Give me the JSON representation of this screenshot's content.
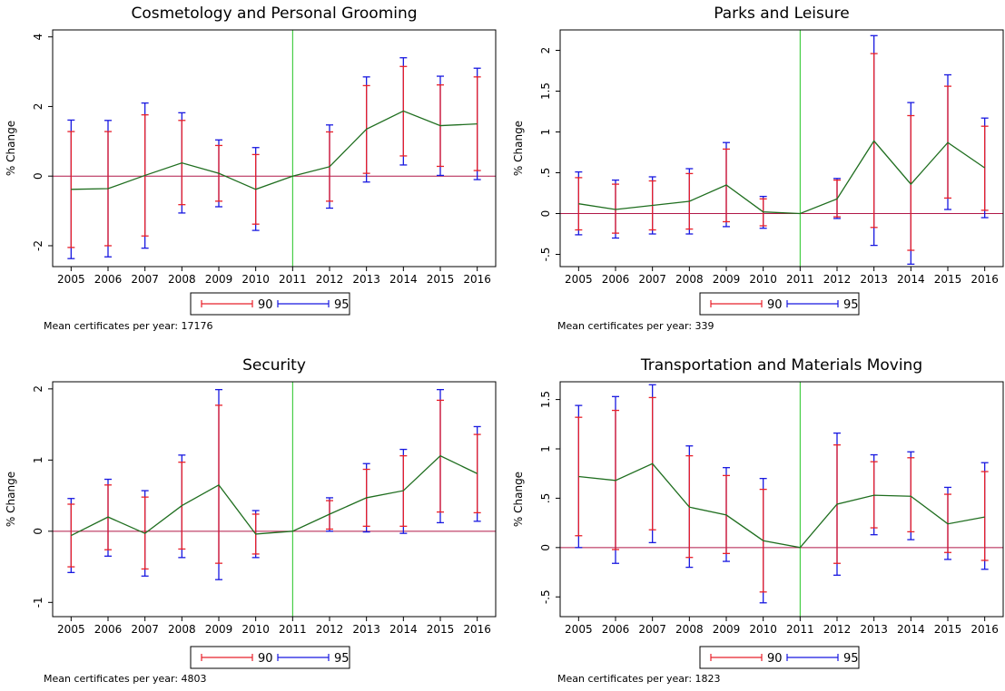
{
  "chart_data": [
    {
      "type": "line",
      "title": "Cosmetology and Personal Grooming",
      "ylabel": "% Change",
      "xlabel": "",
      "x": [
        "2005",
        "2006",
        "2007",
        "2008",
        "2009",
        "2010",
        "2011",
        "2012",
        "2013",
        "2014",
        "2015",
        "2016"
      ],
      "ylim": [
        -2.6,
        4.2
      ],
      "yticks": [
        -2,
        0,
        2,
        4
      ],
      "ytick_labels": [
        "-2",
        "0",
        "2",
        "4"
      ],
      "reference_x": "2011",
      "reference_y": 0,
      "series": [
        {
          "role": "point_estimate",
          "values": [
            -0.38,
            -0.36,
            0.02,
            0.38,
            0.08,
            -0.38,
            0.0,
            0.27,
            1.35,
            1.87,
            1.45,
            1.5
          ]
        },
        {
          "name": "90",
          "role": "ci",
          "low": [
            -2.05,
            -2.0,
            -1.72,
            -0.82,
            -0.72,
            -1.38,
            0.0,
            -0.72,
            0.08,
            0.58,
            0.28,
            0.16
          ],
          "high": [
            1.28,
            1.28,
            1.76,
            1.6,
            0.88,
            0.62,
            0.0,
            1.27,
            2.6,
            3.15,
            2.62,
            2.85
          ]
        },
        {
          "name": "95",
          "role": "ci",
          "low": [
            -2.37,
            -2.32,
            -2.07,
            -1.06,
            -0.88,
            -1.56,
            0.0,
            -0.92,
            -0.17,
            0.32,
            0.02,
            -0.1
          ],
          "high": [
            1.61,
            1.6,
            2.1,
            1.82,
            1.04,
            0.82,
            0.0,
            1.47,
            2.85,
            3.4,
            2.87,
            3.1
          ]
        }
      ],
      "legend_position": "bottom",
      "note": "Mean certificates per year: 17176"
    },
    {
      "type": "line",
      "title": "Parks and Leisure",
      "ylabel": "% Change",
      "xlabel": "",
      "x": [
        "2005",
        "2006",
        "2007",
        "2008",
        "2009",
        "2010",
        "2011",
        "2012",
        "2013",
        "2014",
        "2015",
        "2016"
      ],
      "ylim": [
        -0.65,
        2.25
      ],
      "yticks": [
        -0.5,
        0,
        0.5,
        1,
        1.5,
        2
      ],
      "ytick_labels": [
        "-.5",
        "0",
        ".5",
        "1",
        "1.5",
        "2"
      ],
      "reference_x": "2011",
      "reference_y": 0,
      "series": [
        {
          "role": "point_estimate",
          "values": [
            0.12,
            0.05,
            0.1,
            0.15,
            0.35,
            0.02,
            0.0,
            0.18,
            0.89,
            0.36,
            0.87,
            0.56
          ]
        },
        {
          "name": "90",
          "role": "ci",
          "low": [
            -0.2,
            -0.24,
            -0.2,
            -0.19,
            -0.1,
            -0.15,
            0.0,
            -0.04,
            -0.17,
            -0.45,
            0.19,
            0.04
          ],
          "high": [
            0.44,
            0.36,
            0.4,
            0.49,
            0.79,
            0.18,
            0.0,
            0.41,
            1.96,
            1.2,
            1.56,
            1.07
          ]
        },
        {
          "name": "95",
          "role": "ci",
          "low": [
            -0.26,
            -0.3,
            -0.25,
            -0.25,
            -0.16,
            -0.18,
            0.0,
            -0.06,
            -0.39,
            -0.62,
            0.05,
            -0.05
          ],
          "high": [
            0.51,
            0.41,
            0.45,
            0.55,
            0.87,
            0.21,
            0.0,
            0.43,
            2.18,
            1.36,
            1.7,
            1.17
          ]
        }
      ],
      "legend_position": "bottom",
      "note": "Mean certificates per year: 339"
    },
    {
      "type": "line",
      "title": "Security",
      "ylabel": "% Change",
      "xlabel": "",
      "x": [
        "2005",
        "2006",
        "2007",
        "2008",
        "2009",
        "2010",
        "2011",
        "2012",
        "2013",
        "2014",
        "2015",
        "2016"
      ],
      "ylim": [
        -1.2,
        2.1
      ],
      "yticks": [
        -1,
        0,
        1,
        2
      ],
      "ytick_labels": [
        "-1",
        "0",
        "1",
        "2"
      ],
      "reference_x": "2011",
      "reference_y": 0,
      "series": [
        {
          "role": "point_estimate",
          "values": [
            -0.06,
            0.2,
            -0.03,
            0.36,
            0.65,
            -0.04,
            0.0,
            0.24,
            0.47,
            0.57,
            1.06,
            0.81
          ]
        },
        {
          "name": "90",
          "role": "ci",
          "low": [
            -0.5,
            -0.26,
            -0.53,
            -0.25,
            -0.45,
            -0.32,
            0.0,
            0.03,
            0.07,
            0.07,
            0.27,
            0.26
          ],
          "high": [
            0.38,
            0.65,
            0.48,
            0.97,
            1.77,
            0.24,
            0.0,
            0.43,
            0.87,
            1.06,
            1.84,
            1.36
          ]
        },
        {
          "name": "95",
          "role": "ci",
          "low": [
            -0.58,
            -0.35,
            -0.63,
            -0.37,
            -0.68,
            -0.37,
            0.0,
            0.0,
            -0.01,
            -0.03,
            0.12,
            0.14
          ],
          "high": [
            0.46,
            0.73,
            0.57,
            1.07,
            1.99,
            0.29,
            0.0,
            0.47,
            0.95,
            1.15,
            1.99,
            1.47
          ]
        }
      ],
      "legend_position": "bottom",
      "note": "Mean certificates per year: 4803"
    },
    {
      "type": "line",
      "title": "Transportation and Materials Moving",
      "ylabel": "% Change",
      "xlabel": "",
      "x": [
        "2005",
        "2006",
        "2007",
        "2008",
        "2009",
        "2010",
        "2011",
        "2012",
        "2013",
        "2014",
        "2015",
        "2016"
      ],
      "ylim": [
        -0.7,
        1.68
      ],
      "yticks": [
        -0.5,
        0,
        0.5,
        1,
        1.5
      ],
      "ytick_labels": [
        "-.5",
        "0",
        ".5",
        "1",
        "1.5"
      ],
      "reference_x": "2011",
      "reference_y": 0,
      "series": [
        {
          "role": "point_estimate",
          "values": [
            0.72,
            0.68,
            0.85,
            0.41,
            0.33,
            0.07,
            0.0,
            0.44,
            0.53,
            0.52,
            0.24,
            0.31
          ]
        },
        {
          "name": "90",
          "role": "ci",
          "low": [
            0.12,
            -0.02,
            0.18,
            -0.1,
            -0.06,
            -0.45,
            0.0,
            -0.16,
            0.2,
            0.16,
            -0.05,
            -0.13
          ],
          "high": [
            1.32,
            1.39,
            1.52,
            0.93,
            0.73,
            0.59,
            0.0,
            1.04,
            0.87,
            0.91,
            0.54,
            0.77
          ]
        },
        {
          "name": "95",
          "role": "ci",
          "low": [
            0.0,
            -0.16,
            0.05,
            -0.2,
            -0.14,
            -0.56,
            0.0,
            -0.28,
            0.13,
            0.08,
            -0.12,
            -0.22
          ],
          "high": [
            1.44,
            1.53,
            1.65,
            1.03,
            0.81,
            0.7,
            0.0,
            1.16,
            0.94,
            0.97,
            0.61,
            0.86
          ]
        }
      ],
      "legend_position": "bottom",
      "note": "Mean certificates per year: 1823"
    }
  ],
  "colors": {
    "point_estimate": "#1f6e1f",
    "ci90": "#e8202a",
    "ci95": "#1818e0",
    "reference_vertical": "#22c422",
    "reference_horizontal": "#b01848"
  }
}
